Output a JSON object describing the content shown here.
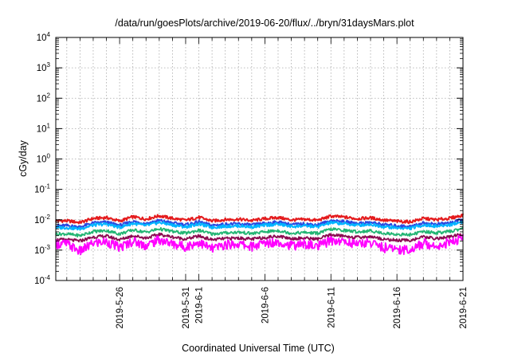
{
  "chart_data": {
    "type": "line",
    "title": "/data/run/goesPlots/archive/2019-06-20/flux/../bryn/31daysMars.plot",
    "xlabel": "Coordinated Universal Time (UTC)",
    "ylabel": "cGy/day",
    "yscale": "log",
    "ylim": [
      0.0001,
      10000
    ],
    "grid": true,
    "x_tick_labels": [
      "2019-5-26",
      "2019-5-31",
      "2019-6-1",
      "2019-6-6",
      "2019-6-11",
      "2019-6-16",
      "2019-6-21"
    ],
    "x_tick_dates": [
      "2019-05-26",
      "2019-05-31",
      "2019-06-01",
      "2019-06-06",
      "2019-06-11",
      "2019-06-16",
      "2019-06-21"
    ],
    "y_tick_labels": [
      {
        "base": "10",
        "exp": "-4"
      },
      {
        "base": "10",
        "exp": "-3"
      },
      {
        "base": "10",
        "exp": "-2"
      },
      {
        "base": "10",
        "exp": "-1"
      },
      {
        "base": "10",
        "exp": "0"
      },
      {
        "base": "10",
        "exp": "1"
      },
      {
        "base": "10",
        "exp": "2"
      },
      {
        "base": "10",
        "exp": "3"
      },
      {
        "base": "10",
        "exp": "4"
      }
    ],
    "series": [
      {
        "color": "#e41a1c",
        "x_start": "2019-05-22",
        "x_end": "2019-06-21",
        "values": [
          0.0092,
          0.0081,
          0.011,
          0.0118,
          0.009,
          0.0125,
          0.0105,
          0.0135,
          0.0111,
          0.0096,
          0.012,
          0.0091,
          0.0101,
          0.0104,
          0.0094,
          0.0108,
          0.0119,
          0.0098,
          0.0103,
          0.0096,
          0.0131,
          0.0122,
          0.0108,
          0.0116,
          0.0097,
          0.0089,
          0.0085,
          0.011,
          0.01,
          0.0112,
          0.0141
        ]
      },
      {
        "color": "#2b49e0",
        "x_start": "2019-05-22",
        "x_end": "2019-06-21",
        "values": [
          0.0064,
          0.0058,
          0.0078,
          0.0083,
          0.0065,
          0.0088,
          0.0074,
          0.0095,
          0.0078,
          0.0068,
          0.0085,
          0.0065,
          0.0071,
          0.0073,
          0.0067,
          0.0076,
          0.0084,
          0.0069,
          0.0073,
          0.0068,
          0.0093,
          0.0086,
          0.0076,
          0.0082,
          0.0069,
          0.0063,
          0.006,
          0.0078,
          0.0071,
          0.0079,
          0.01
        ]
      },
      {
        "color": "#00b4ff",
        "x_start": "2019-05-22",
        "x_end": "2019-06-21",
        "values": [
          0.0055,
          0.005,
          0.0067,
          0.0072,
          0.0056,
          0.0076,
          0.0064,
          0.0082,
          0.0067,
          0.0058,
          0.0073,
          0.0056,
          0.0061,
          0.0063,
          0.0058,
          0.0066,
          0.0072,
          0.006,
          0.0063,
          0.0059,
          0.008,
          0.0074,
          0.0066,
          0.0071,
          0.0059,
          0.0054,
          0.0052,
          0.0067,
          0.0061,
          0.0068,
          0.0086
        ]
      },
      {
        "color": "#22b573",
        "x_start": "2019-05-22",
        "x_end": "2019-06-21",
        "values": [
          0.0034,
          0.003,
          0.0041,
          0.0044,
          0.0034,
          0.0046,
          0.0039,
          0.005,
          0.0041,
          0.0036,
          0.0045,
          0.0034,
          0.0037,
          0.0039,
          0.0035,
          0.004,
          0.0044,
          0.0036,
          0.0038,
          0.0036,
          0.0049,
          0.0045,
          0.004,
          0.0043,
          0.0036,
          0.0033,
          0.0032,
          0.0041,
          0.0037,
          0.0041,
          0.0052
        ]
      },
      {
        "color": "#8b0a50",
        "x_start": "2019-05-22",
        "x_end": "2019-06-21",
        "values": [
          0.0022,
          0.002,
          0.0027,
          0.0029,
          0.0022,
          0.003,
          0.0025,
          0.0033,
          0.0027,
          0.0023,
          0.0029,
          0.0022,
          0.0024,
          0.0025,
          0.0023,
          0.0026,
          0.0029,
          0.0024,
          0.0025,
          0.0023,
          0.0032,
          0.0029,
          0.0026,
          0.0028,
          0.0023,
          0.0021,
          0.0021,
          0.0027,
          0.0024,
          0.0027,
          0.0034
        ]
      },
      {
        "color": "#ff00ff",
        "x_start": "2019-05-22",
        "x_end": "2019-06-21",
        "values": [
          0.0016,
          0.0009,
          0.0017,
          0.0019,
          0.0012,
          0.002,
          0.0014,
          0.0022,
          0.0016,
          0.0013,
          0.0018,
          0.0011,
          0.0015,
          0.0016,
          0.0013,
          0.0017,
          0.0019,
          0.0014,
          0.0016,
          0.0013,
          0.0021,
          0.0019,
          0.0016,
          0.0018,
          0.0012,
          0.0011,
          0.001,
          0.0017,
          0.0014,
          0.0018,
          0.0024
        ]
      }
    ]
  }
}
